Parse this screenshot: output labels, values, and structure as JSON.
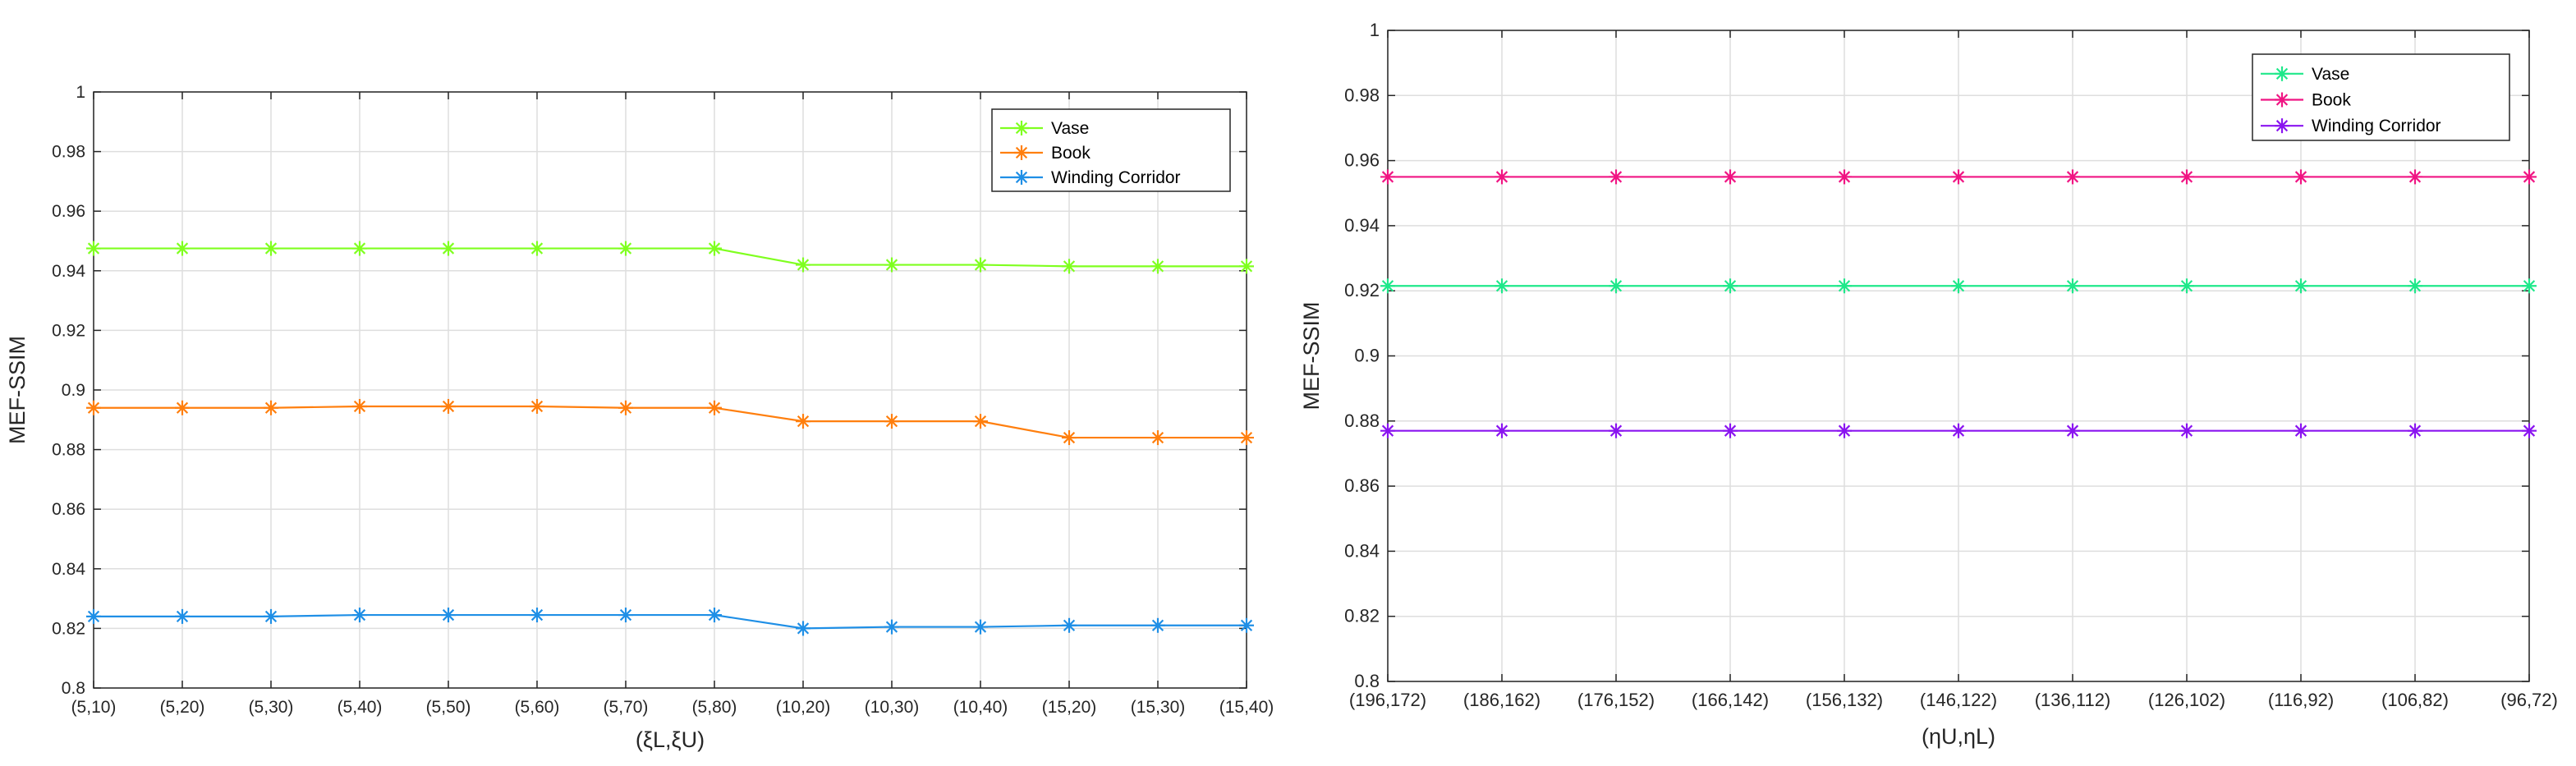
{
  "chart_data": [
    {
      "type": "line",
      "title": "",
      "xlabel": "(ξL,ξU)",
      "ylabel": "MEF-SSIM",
      "ylim": [
        0.8,
        1.0
      ],
      "yticks": [
        "0.8",
        "0.82",
        "0.84",
        "0.86",
        "0.88",
        "0.9",
        "0.92",
        "0.94",
        "0.96",
        "0.98",
        "1"
      ],
      "grid": true,
      "legend_position": "top-right",
      "categories": [
        "(5,10)",
        "(5,20)",
        "(5,30)",
        "(5,40)",
        "(5,50)",
        "(5,60)",
        "(5,70)",
        "(5,80)",
        "(10,20)",
        "(10,30)",
        "(10,40)",
        "(15,20)",
        "(15,30)",
        "(15,40)"
      ],
      "series": [
        {
          "name": "Vase",
          "color": "#7fff1f",
          "marker": "asterisk",
          "values": [
            0.9475,
            0.9475,
            0.9475,
            0.9475,
            0.9475,
            0.9475,
            0.9475,
            0.9475,
            0.942,
            0.942,
            0.942,
            0.9415,
            0.9415,
            0.9415
          ]
        },
        {
          "name": "Book",
          "color": "#ff7f0e",
          "marker": "asterisk",
          "values": [
            0.894,
            0.894,
            0.894,
            0.8945,
            0.8945,
            0.8945,
            0.894,
            0.894,
            0.8895,
            0.8895,
            0.8895,
            0.884,
            0.884,
            0.884
          ]
        },
        {
          "name": "Winding Corridor",
          "color": "#1f8fe6",
          "marker": "asterisk",
          "values": [
            0.824,
            0.824,
            0.824,
            0.8245,
            0.8245,
            0.8245,
            0.8245,
            0.8245,
            0.82,
            0.8205,
            0.8205,
            0.821,
            0.821,
            0.821
          ]
        }
      ]
    },
    {
      "type": "line",
      "title": "",
      "xlabel": "(ηU,ηL)",
      "ylabel": "MEF-SSIM",
      "ylim": [
        0.8,
        1.0
      ],
      "yticks": [
        "0.8",
        "0.82",
        "0.84",
        "0.86",
        "0.88",
        "0.9",
        "0.92",
        "0.94",
        "0.96",
        "0.98",
        "1"
      ],
      "grid": true,
      "legend_position": "top-right",
      "categories": [
        "(196,172)",
        "(186,162)",
        "(176,152)",
        "(166,142)",
        "(156,132)",
        "(146,122)",
        "(136,112)",
        "(126,102)",
        "(116,92)",
        "(106,82)",
        "(96,72)"
      ],
      "series": [
        {
          "name": "Vase",
          "color": "#1fe88a",
          "marker": "asterisk",
          "values": [
            0.9215,
            0.9215,
            0.9215,
            0.9215,
            0.9215,
            0.9215,
            0.9215,
            0.9215,
            0.9215,
            0.9215,
            0.9215
          ]
        },
        {
          "name": "Book",
          "color": "#f01483",
          "marker": "asterisk",
          "values": [
            0.955,
            0.955,
            0.955,
            0.955,
            0.955,
            0.955,
            0.955,
            0.955,
            0.955,
            0.955,
            0.955
          ]
        },
        {
          "name": "Winding Corridor",
          "color": "#8a14f0",
          "marker": "asterisk",
          "values": [
            0.877,
            0.877,
            0.877,
            0.877,
            0.877,
            0.877,
            0.877,
            0.877,
            0.877,
            0.877,
            0.877
          ]
        }
      ]
    }
  ]
}
